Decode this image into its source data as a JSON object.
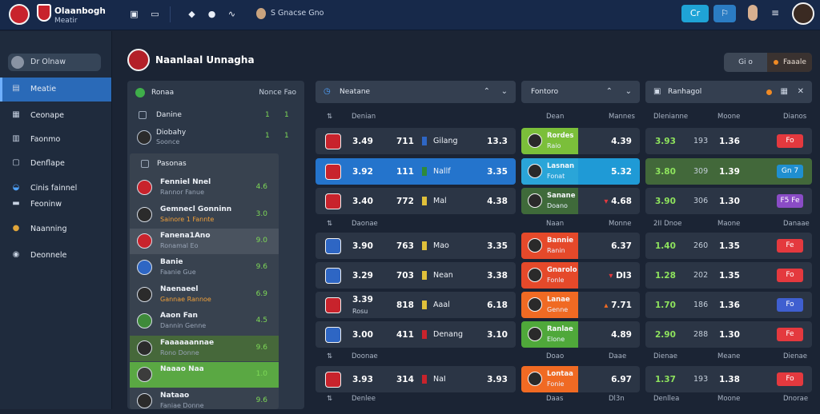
{
  "colors": {
    "accent": "#2a6ab8",
    "positive": "#7ed957",
    "danger": "#e4393e",
    "orange": "#f06a23",
    "cyan": "#1fa3d6"
  },
  "topbar": {
    "brand_name": "Olaanbogh",
    "brand_sub": "Meatir",
    "user_label": "S Gnacse Gno",
    "btn_cyan": "Cr",
    "btn_blue": "⚐",
    "icons": [
      "twitch-icon",
      "shield-icon",
      "chat-icon",
      "wave-icon",
      "settings-icon"
    ]
  },
  "sidebar": {
    "search_label": "Dr Olnaw",
    "items": [
      {
        "label": "Meatie",
        "icon": "house-icon",
        "active": true
      },
      {
        "label": "Ceonape",
        "icon": "document-icon"
      },
      {
        "label": "Faonmo",
        "icon": "list-icon"
      },
      {
        "label": "Denflape",
        "icon": "calendar-icon"
      },
      {
        "label": "Cinis fainnel",
        "icon": "globe-icon"
      },
      {
        "label": "Feoninw",
        "icon": "flag-icon"
      },
      {
        "label": "Naanning",
        "icon": "user-icon"
      },
      {
        "label": "Deonnele",
        "icon": "info-icon"
      }
    ]
  },
  "header": {
    "title": "Naanlaal Unnagha",
    "segment_a": "Gi o",
    "segment_b": "Faaale"
  },
  "matches_panel": {
    "title": "Ronaa",
    "right_label": "Nonce Fao",
    "rows": [
      {
        "label": "Danine",
        "v1": "1",
        "v2": "1"
      },
      {
        "label": "Diobahy",
        "v1": "1",
        "v2": "1",
        "sub": "Soonce"
      },
      {
        "label": "Pasonas"
      }
    ],
    "teams": [
      {
        "title": "Fenniel Nnel",
        "sub": "Rannor Fanue",
        "n": "4.6",
        "color": "#c8232c",
        "style": ""
      },
      {
        "title": "Gemnecl Gonninn",
        "sub": "Sainore 1 Fannte",
        "n": "3.0",
        "color": "#2b2b2b",
        "style": "or"
      },
      {
        "title": "Fanena1Ano",
        "sub": "Ronamal Eo",
        "n": "9.0",
        "color": "#c8232c",
        "style": ""
      },
      {
        "title": "Banie",
        "sub": "Faanie Gue",
        "n": "9.6",
        "color": "#2e66c4",
        "style": ""
      },
      {
        "title": "Naenaeel",
        "sub": "Gannae Rannoe",
        "n": "6.9",
        "color": "#2b2b2b",
        "style": "or"
      },
      {
        "title": "Aaon Fan",
        "sub": "Dannin Genne",
        "n": "4.5",
        "color": "#3e8a3a",
        "style": ""
      },
      {
        "title": "Faaaaaannae",
        "sub": "Rono Donne",
        "n": "9.6",
        "color": "#2b2b2b",
        "style": ""
      },
      {
        "title": "Naaao Naa",
        "sub": "",
        "n": "1.0",
        "color": "#3c3c3c",
        "style": ""
      },
      {
        "title": "Nataao",
        "sub": "Faniae Donne",
        "n": "9.6",
        "color": "#2b2b2b",
        "style": ""
      }
    ]
  },
  "col_games": {
    "title": "Neatane"
  },
  "col_center": {
    "title": "Fontoro"
  },
  "col_right": {
    "title": "Ranhagol"
  },
  "sub_headers": [
    {
      "a": "Denian",
      "b": "Dean",
      "c": "Mannes",
      "d": "Dlenianne",
      "e": "Moone",
      "f": "Dianos"
    },
    {
      "a": "Daonae",
      "b": "Naan",
      "c": "Monne",
      "d": "2II Dnoe",
      "e": "Maone",
      "f": "Danaae"
    },
    {
      "a": "Doonae",
      "b": "Doao",
      "c": "Daae",
      "d": "Dienae",
      "e": "Meane",
      "f": "Dienae"
    },
    {
      "a": "Denlee",
      "b": "Daas",
      "c": "Dl3n",
      "d": "Denllea",
      "e": "Moone",
      "f": "Dnorae"
    }
  ],
  "games": [
    {
      "o1": "3.49",
      "o2": "711",
      "team": "Gilang",
      "o3": "13.3",
      "crest": "#c8232c",
      "flag": "#2e66c4",
      "selected": false
    },
    {
      "o1": "3.92",
      "o2": "111",
      "team": "Nallf",
      "o3": "3.35",
      "crest": "#c8232c",
      "flag": "#2e8a3a",
      "selected": true
    },
    {
      "o1": "3.40",
      "o2": "772",
      "team": "Mal",
      "o3": "4.38",
      "crest": "#c8232c",
      "flag": "#e0c03a",
      "selected": false
    },
    {
      "o1": "3.90",
      "o2": "763",
      "team": "Mao",
      "o3": "3.35",
      "crest": "#2e66c4",
      "flag": "#e0c03a",
      "selected": false
    },
    {
      "o1": "3.29",
      "o2": "703",
      "team": "Nean",
      "o3": "3.38",
      "crest": "#2e66c4",
      "flag": "#e0c03a",
      "selected": false
    },
    {
      "o1": "3.39",
      "o2": "818",
      "team": "Aaal",
      "o3": "6.18",
      "crest": "#c8232c",
      "flag": "#e0c03a",
      "selected": false,
      "sub": "Rosu"
    },
    {
      "o1": "3.00",
      "o2": "411",
      "team": "Denang",
      "o3": "3.10",
      "crest": "#2e66c4",
      "flag": "#c8232c",
      "selected": false
    },
    {
      "o1": "3.93",
      "o2": "314",
      "team": "NaI",
      "o3": "3.93",
      "crest": "#c8232c",
      "flag": "#c8232c",
      "selected": false
    }
  ],
  "center_rows": [
    {
      "t": "Rordes",
      "s": "Raio",
      "v": "4.39",
      "arrow": "",
      "color": "#7bbf3a"
    },
    {
      "t": "Lasnan",
      "s": "Fonat",
      "v": "5.32",
      "arrow": "",
      "color": "#2aa5d8"
    },
    {
      "t": "Sanane",
      "s": "Doano",
      "v": "4.68",
      "arrow": "▾",
      "color": "#3f6a3a"
    },
    {
      "t": "Bannie",
      "s": "Ranin",
      "v": "6.37",
      "arrow": "",
      "color": "#e5492a"
    },
    {
      "t": "Gnarolo",
      "s": "Fonle",
      "v": "DI3",
      "arrow": "▾",
      "color": "#e5492a"
    },
    {
      "t": "Lanae",
      "s": "Genne",
      "v": "7.71",
      "arrow": "▴",
      "color": "#f06a23"
    },
    {
      "t": "Ranlae",
      "s": "Elone",
      "v": "4.89",
      "arrow": "",
      "color": "#4fa83a"
    },
    {
      "t": "Lontaa",
      "s": "Fonie",
      "v": "6.97",
      "arrow": "",
      "color": "#f06a23"
    }
  ],
  "right_rows": [
    {
      "a": "3.93",
      "b": "193",
      "c": "1.36",
      "tag": "Fo",
      "tag_color": "#e4393e",
      "style": ""
    },
    {
      "a": "3.80",
      "b": "309",
      "c": "1.39",
      "tag": "Gn 7",
      "tag_color": "#1f8fd0",
      "style": "gl"
    },
    {
      "a": "3.90",
      "b": "306",
      "c": "1.30",
      "tag": "F5 Fe",
      "tag_color": "#8a4cc6",
      "style": ""
    },
    {
      "a": "1.40",
      "b": "260",
      "c": "1.35",
      "tag": "Fe",
      "tag_color": "#e4393e",
      "style": ""
    },
    {
      "a": "1.28",
      "b": "202",
      "c": "1.35",
      "tag": "Fo",
      "tag_color": "#e4393e",
      "style": ""
    },
    {
      "a": "1.70",
      "b": "186",
      "c": "1.36",
      "tag": "Fo",
      "tag_color": "#3f5fd0",
      "style": ""
    },
    {
      "a": "2.90",
      "b": "288",
      "c": "1.30",
      "tag": "Fe",
      "tag_color": "#e4393e",
      "style": ""
    },
    {
      "a": "1.37",
      "b": "193",
      "c": "1.38",
      "tag": "Fo",
      "tag_color": "#e4393e",
      "style": ""
    }
  ]
}
